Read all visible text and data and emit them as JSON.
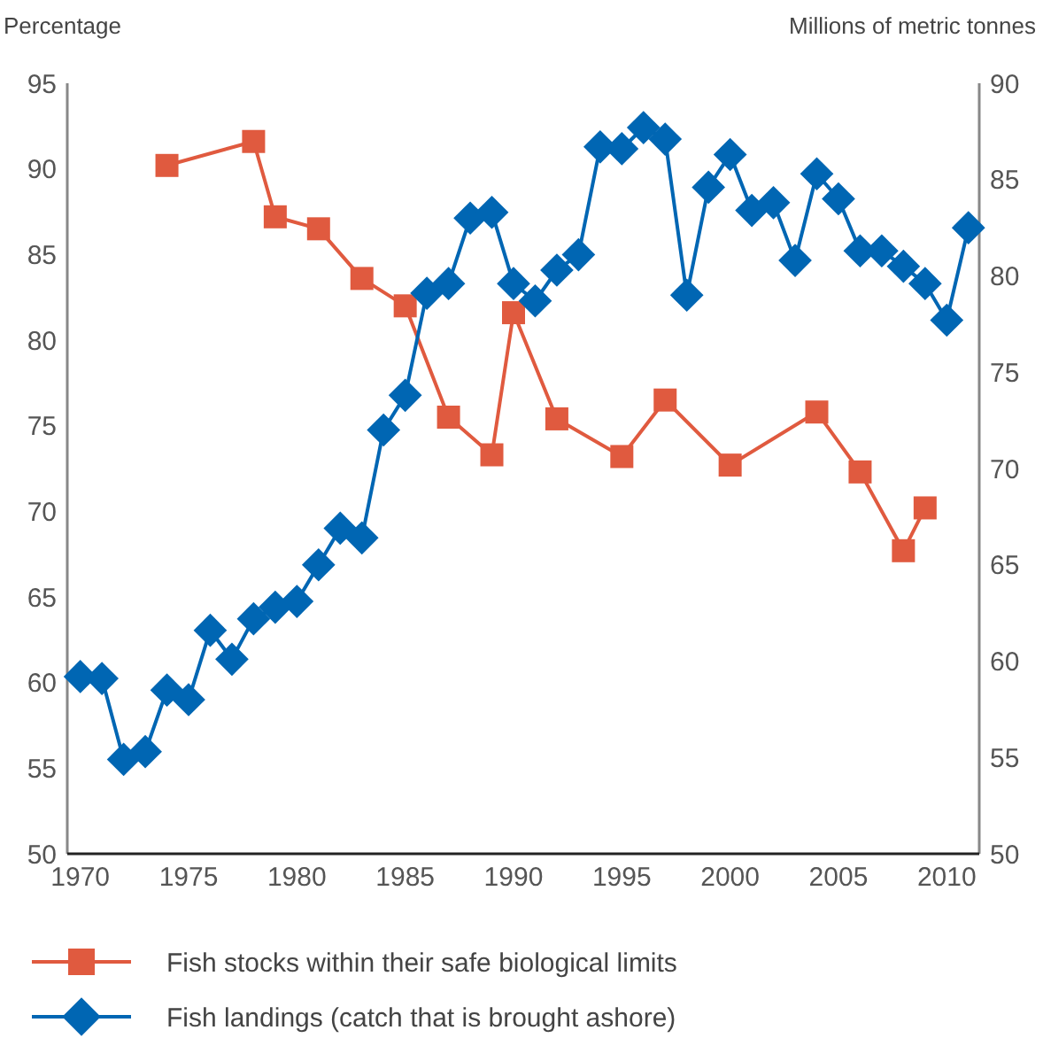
{
  "chart_data": {
    "type": "line",
    "ylabel": "Percentage",
    "y2label": "Millions of metric tonnes",
    "x": [
      1970,
      1971,
      1972,
      1973,
      1974,
      1975,
      1976,
      1977,
      1978,
      1979,
      1980,
      1981,
      1982,
      1983,
      1984,
      1985,
      1986,
      1987,
      1988,
      1989,
      1990,
      1991,
      1992,
      1993,
      1994,
      1995,
      1996,
      1997,
      1998,
      1999,
      2000,
      2001,
      2002,
      2003,
      2004,
      2005,
      2006,
      2007,
      2008,
      2009,
      2010,
      2011
    ],
    "xlim": [
      1969.4,
      2011.5
    ],
    "xticks": [
      1970,
      1975,
      1980,
      1985,
      1990,
      1995,
      2000,
      2005,
      2010
    ],
    "ylim": [
      50,
      95
    ],
    "yticks": [
      50,
      55,
      60,
      65,
      70,
      75,
      80,
      85,
      90,
      95
    ],
    "y2lim": [
      50,
      90
    ],
    "y2ticks": [
      50,
      55,
      60,
      65,
      70,
      75,
      80,
      85,
      90
    ],
    "series": [
      {
        "name": "Fish stocks within their safe biological limits",
        "color": "#e05a3f",
        "marker": "square",
        "x": [
          1974,
          1978,
          1979,
          1981,
          1983,
          1985,
          1987,
          1989,
          1990,
          1992,
          1995,
          1997,
          2000,
          2004,
          2006,
          2008,
          2009
        ],
        "values": [
          90.2,
          91.6,
          87.2,
          86.5,
          83.6,
          82.0,
          75.5,
          73.3,
          81.6,
          75.4,
          73.2,
          76.5,
          72.7,
          75.8,
          72.3,
          67.7,
          70.2
        ]
      },
      {
        "name": "Fish landings (catch that is brought ashore)",
        "color": "#0066b3",
        "marker": "diamond",
        "axis": "y2",
        "values": [
          59.2,
          59.1,
          54.9,
          55.3,
          58.5,
          58.0,
          61.6,
          60.1,
          62.2,
          62.8,
          63.1,
          65.0,
          66.9,
          66.4,
          72.0,
          73.8,
          79.1,
          79.6,
          83.0,
          83.3,
          79.6,
          78.7,
          80.3,
          81.1,
          86.7,
          86.6,
          87.7,
          87.1,
          79.0,
          84.6,
          86.3,
          83.4,
          83.8,
          80.8,
          85.3,
          84.0,
          81.3,
          81.3,
          80.5,
          79.6,
          77.7,
          82.5
        ]
      }
    ],
    "grid": false,
    "legend": "bottom",
    "line_style": "solid"
  }
}
